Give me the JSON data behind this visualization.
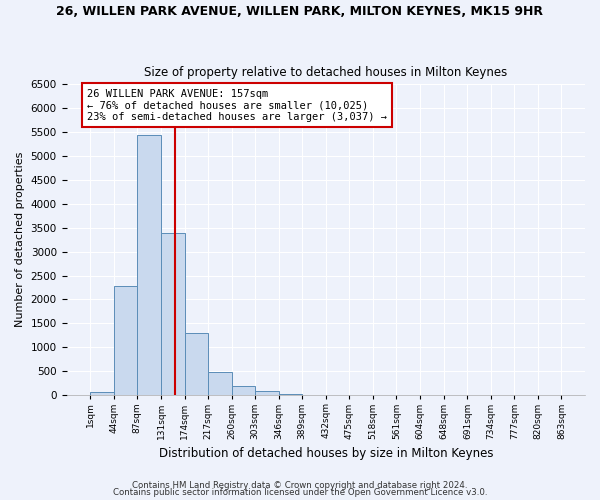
{
  "title": "26, WILLEN PARK AVENUE, WILLEN PARK, MILTON KEYNES, MK15 9HR",
  "subtitle": "Size of property relative to detached houses in Milton Keynes",
  "xlabel": "Distribution of detached houses by size in Milton Keynes",
  "ylabel": "Number of detached properties",
  "bar_color": "#c9d9ee",
  "bar_edge_color": "#5b8db8",
  "background_color": "#eef2fb",
  "plot_bg_color": "#eef2fb",
  "grid_color": "#ffffff",
  "property_line_color": "#cc0000",
  "property_size": 157,
  "annotation_line1": "26 WILLEN PARK AVENUE: 157sqm",
  "annotation_line2": "← 76% of detached houses are smaller (10,025)",
  "annotation_line3": "23% of semi-detached houses are larger (3,037) →",
  "annotation_box_color": "white",
  "annotation_box_edge": "#cc0000",
  "ylim": [
    0,
    6500
  ],
  "yticks": [
    0,
    500,
    1000,
    1500,
    2000,
    2500,
    3000,
    3500,
    4000,
    4500,
    5000,
    5500,
    6000,
    6500
  ],
  "bin_edges": [
    1,
    44,
    87,
    131,
    174,
    217,
    260,
    303,
    346,
    389,
    432,
    475,
    518,
    561,
    604,
    648,
    691,
    734,
    777,
    820,
    863
  ],
  "bin_counts": [
    75,
    2275,
    5430,
    3390,
    1310,
    480,
    200,
    90,
    30,
    10,
    5,
    2,
    0,
    0,
    0,
    0,
    0,
    0,
    0,
    0
  ],
  "footer_line1": "Contains HM Land Registry data © Crown copyright and database right 2024.",
  "footer_line2": "Contains public sector information licensed under the Open Government Licence v3.0."
}
